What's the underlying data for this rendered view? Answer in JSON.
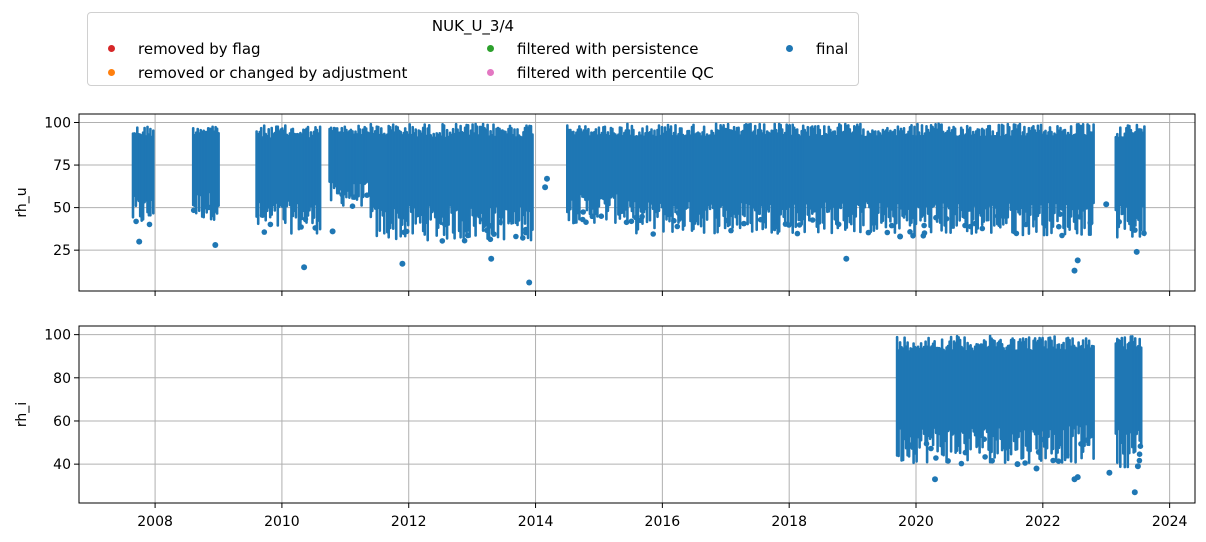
{
  "legend": {
    "title": "NUK_U_3/4",
    "entries": [
      {
        "label": "removed by flag",
        "color": "#d62728"
      },
      {
        "label": "removed or changed by adjustment",
        "color": "#ff7f0e"
      },
      {
        "label": "filtered with persistence",
        "color": "#2ca02c"
      },
      {
        "label": "filtered with percentile QC",
        "color": "#e377c2"
      },
      {
        "label": "final",
        "color": "#1f77b4"
      }
    ]
  },
  "chart_data": [
    {
      "type": "scatter",
      "ylabel": "rh_u",
      "xlim": [
        2006.8,
        2024.4
      ],
      "ylim": [
        1,
        105
      ],
      "yticks": [
        25,
        50,
        75,
        100
      ],
      "xticks": [
        2008,
        2010,
        2012,
        2014,
        2016,
        2018,
        2020,
        2022,
        2024
      ],
      "show_xticklabels": false,
      "grid": true,
      "color": "#1f77b4",
      "segments": [
        {
          "x": [
            2007.65,
            2007.97
          ],
          "y": [
            38,
            99
          ]
        },
        {
          "x": [
            2008.6,
            2009.0
          ],
          "y": [
            42,
            100
          ]
        },
        {
          "x": [
            2009.6,
            2010.6
          ],
          "y": [
            34,
            99
          ]
        },
        {
          "x": [
            2010.75,
            2011.4
          ],
          "y": [
            50,
            99
          ]
        },
        {
          "x": [
            2011.4,
            2013.95
          ],
          "y": [
            30,
            100
          ]
        },
        {
          "x": [
            2014.5,
            2015.4
          ],
          "y": [
            40,
            99
          ]
        },
        {
          "x": [
            2015.4,
            2019.5
          ],
          "y": [
            34,
            100
          ]
        },
        {
          "x": [
            2019.5,
            2022.8
          ],
          "y": [
            33,
            100
          ]
        },
        {
          "x": [
            2023.15,
            2023.6
          ],
          "y": [
            30,
            100
          ]
        }
      ],
      "outliers": [
        {
          "x": 2007.75,
          "y": 30
        },
        {
          "x": 2008.95,
          "y": 28
        },
        {
          "x": 2010.35,
          "y": 15
        },
        {
          "x": 2010.8,
          "y": 36
        },
        {
          "x": 2011.9,
          "y": 17
        },
        {
          "x": 2013.3,
          "y": 20
        },
        {
          "x": 2013.9,
          "y": 6
        },
        {
          "x": 2014.15,
          "y": 62
        },
        {
          "x": 2014.18,
          "y": 67
        },
        {
          "x": 2018.9,
          "y": 20
        },
        {
          "x": 2019.75,
          "y": 33
        },
        {
          "x": 2022.5,
          "y": 13
        },
        {
          "x": 2022.55,
          "y": 19
        },
        {
          "x": 2022.75,
          "y": 41
        },
        {
          "x": 2023.0,
          "y": 52
        },
        {
          "x": 2023.48,
          "y": 24
        }
      ]
    },
    {
      "type": "scatter",
      "ylabel": "rh_i",
      "xlim": [
        2006.8,
        2024.4
      ],
      "ylim": [
        22,
        104
      ],
      "yticks": [
        40,
        60,
        80,
        100
      ],
      "xticks": [
        2008,
        2010,
        2012,
        2014,
        2016,
        2018,
        2020,
        2022,
        2024
      ],
      "xticklabels": [
        "2008",
        "2010",
        "2012",
        "2014",
        "2016",
        "2018",
        "2020",
        "2022",
        "2024"
      ],
      "show_xticklabels": true,
      "grid": true,
      "color": "#1f77b4",
      "segments": [
        {
          "x": [
            2019.7,
            2022.8
          ],
          "y": [
            40,
            100
          ]
        },
        {
          "x": [
            2023.15,
            2023.55
          ],
          "y": [
            38,
            100
          ]
        }
      ],
      "outliers": [
        {
          "x": 2020.3,
          "y": 33
        },
        {
          "x": 2021.9,
          "y": 38
        },
        {
          "x": 2021.6,
          "y": 40
        },
        {
          "x": 2022.5,
          "y": 33
        },
        {
          "x": 2022.55,
          "y": 34
        },
        {
          "x": 2023.05,
          "y": 36
        },
        {
          "x": 2023.45,
          "y": 27
        },
        {
          "x": 2023.5,
          "y": 39
        }
      ]
    }
  ]
}
